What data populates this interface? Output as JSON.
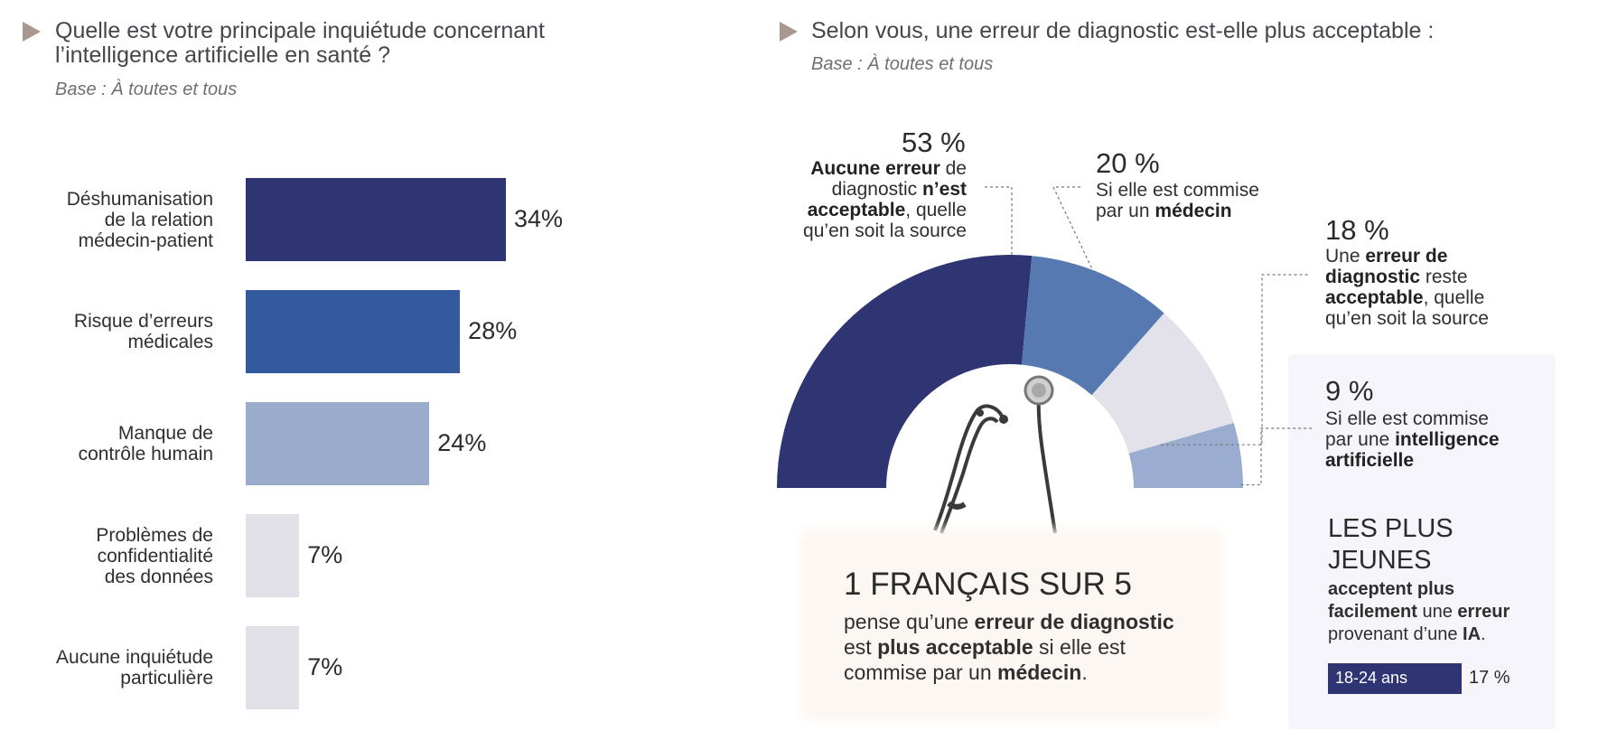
{
  "left_panel": {
    "question": "Quelle est votre principale inquiétude concernant l'intelligence artificielle en santé ?",
    "question_line1": "Quelle est votre principale inquiétude concernant",
    "question_line2": "l’intelligence artificielle en santé ?",
    "base": "Base : À toutes et tous"
  },
  "right_panel": {
    "question": "Selon vous, une erreur de diagnostic est-elle plus acceptable :",
    "base": "Base : À toutes et tous"
  },
  "chart_data": [
    {
      "type": "bar",
      "orientation": "horizontal",
      "categories": [
        "Déshumanisation de la relation médecin-patient",
        "Risque d’erreurs médicales",
        "Manque de contrôle humain",
        "Problèmes de confidentialité des données",
        "Aucune inquiétude particulière"
      ],
      "category_lines": [
        [
          "Déshumanisation",
          "de la relation",
          "médecin-patient"
        ],
        [
          "Risque d’erreurs",
          "médicales"
        ],
        [
          "Manque de",
          "contrôle humain"
        ],
        [
          "Problèmes de",
          "confidentialité",
          "des données"
        ],
        [
          "Aucune inquiétude",
          "particulière"
        ]
      ],
      "values": [
        34,
        28,
        24,
        7,
        7
      ],
      "value_labels": [
        "34%",
        "28%",
        "24%",
        "7%",
        "7%"
      ],
      "colors": [
        "#2e3572",
        "#335a9f",
        "#9aabcb",
        "#e2e1e8",
        "#e2e1e8"
      ],
      "xlim": [
        0,
        34
      ]
    },
    {
      "type": "pie",
      "variant": "half-donut",
      "values": [
        53,
        20,
        18,
        9
      ],
      "value_labels": [
        "53 %",
        "20 %",
        "18 %",
        "9 %"
      ],
      "labels": [
        "Aucune erreur de diagnostic n’est acceptable, quelle qu’en soit la source",
        "Si elle est commise par un médecin",
        "Une erreur de diagnostic reste acceptable, quelle qu’en soit la source",
        "Si elle est commise par une intelligence artificielle"
      ],
      "colors": [
        "#2e3572",
        "#5779b2",
        "#e3e2ea",
        "#9aadd0"
      ]
    }
  ],
  "annotations": {
    "a1_lines": [
      "<b>Aucune erreur</b> de",
      "diagnostic <b>n’est</b>",
      "<b>acceptable</b>, quelle",
      "qu’en soit la source"
    ],
    "a2_lines": [
      "Si elle est commise",
      "par un <b>médecin</b>"
    ],
    "a3_lines": [
      "Une <b>erreur de</b>",
      "<b>diagnostic</b> reste",
      "<b>acceptable</b>, quelle",
      "qu’en soit la source"
    ],
    "a4_lines": [
      "Si elle est commise",
      "par une <b>intelligence</b>",
      "<b>artificielle</b>"
    ]
  },
  "callout": {
    "headline": "1 FRANÇAIS SUR 5",
    "body_lines": [
      "pense qu’une <b>erreur de diagnostic</b>",
      "est <b>plus acceptable</b> si elle est",
      "commise par un <b>médecin</b>."
    ]
  },
  "youth_box": {
    "title_line1": "LES PLUS",
    "title_line2": "JEUNES",
    "body_lines": [
      "<b>acceptent plus</b>",
      "<b>facilement</b> une <b>erreur</b>",
      "provenant d’une <b>IA</b>."
    ],
    "age_label": "18-24 ans",
    "age_value": "17 %",
    "age_value_num": 17,
    "bar_color": "#2e3572"
  },
  "colors": {
    "accent_triangle": "#a89890",
    "navy": "#2e3572"
  },
  "icons": {
    "stethoscope": "stethoscope-icon"
  }
}
